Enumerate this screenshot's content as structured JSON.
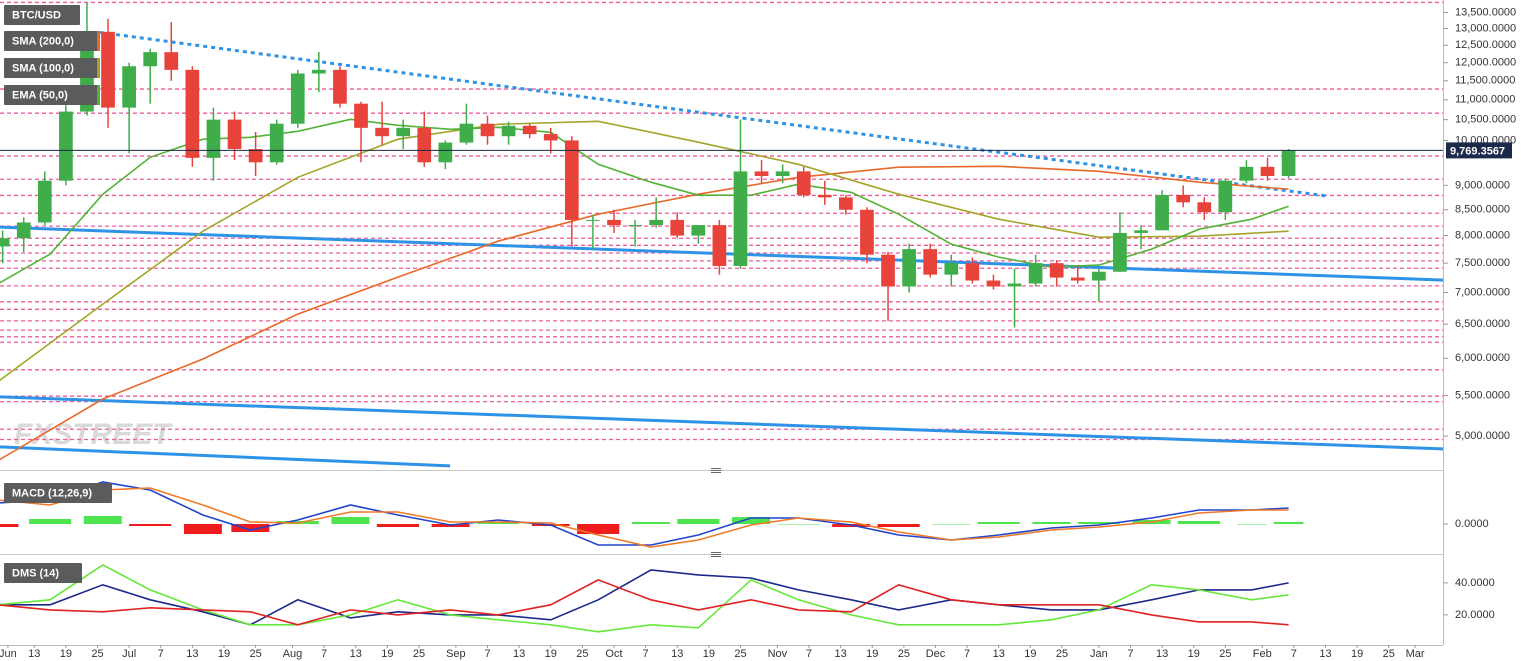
{
  "chart_data": [
    {
      "type": "candlestick",
      "title": "BTC/USD",
      "log_scale": true,
      "xlim": [
        5.5,
        279.3
      ],
      "ylim": [
        4650,
        13900
      ],
      "yticks": [
        {
          "value": 13500,
          "label": "13,500.0000"
        },
        {
          "value": 13000,
          "label": "13,000.0000"
        },
        {
          "value": 12500,
          "label": "12,500.0000"
        },
        {
          "value": 12000,
          "label": "12,000.0000"
        },
        {
          "value": 11500,
          "label": "11,500.0000"
        },
        {
          "value": 11000,
          "label": "11,000.0000"
        },
        {
          "value": 10500,
          "label": "10,500.0000"
        },
        {
          "value": 10000,
          "label": "10,000.0000"
        },
        {
          "value": 9000,
          "label": "9,000.0000"
        },
        {
          "value": 8500,
          "label": "8,500.0000"
        },
        {
          "value": 8000,
          "label": "8,000.0000"
        },
        {
          "value": 7500,
          "label": "7,500.0000"
        },
        {
          "value": 7000,
          "label": "7,000.0000"
        },
        {
          "value": 6500,
          "label": "6,500.0000"
        },
        {
          "value": 6000,
          "label": "6,000.0000"
        },
        {
          "value": 5500,
          "label": "5,500.0000"
        },
        {
          "value": 5000,
          "label": "5,000.0000"
        }
      ],
      "x": [
        6,
        10,
        14,
        18,
        22,
        26,
        30,
        34,
        38,
        42,
        46,
        50,
        54,
        58,
        62,
        66,
        70,
        74,
        78,
        82,
        86,
        90,
        94,
        98,
        102,
        106,
        110,
        114,
        118,
        122,
        126,
        130,
        134,
        138,
        142,
        146,
        150,
        154,
        158,
        162,
        166,
        170,
        174,
        178,
        182,
        186,
        190,
        194,
        198,
        202,
        206,
        210,
        214,
        218,
        222,
        226,
        230,
        234,
        238,
        242,
        246,
        250
      ],
      "open": [
        7800,
        7950,
        8250,
        9100,
        10700,
        12900,
        10800,
        11900,
        12300,
        11800,
        9600,
        10500,
        9800,
        9500,
        10400,
        11700,
        11800,
        10900,
        10300,
        10100,
        10300,
        9500,
        9950,
        10400,
        10100,
        10350,
        10150,
        10000,
        8300,
        8300,
        8200,
        8200,
        8300,
        8000,
        8200,
        7450,
        9300,
        9200,
        9300,
        8800,
        8750,
        8500,
        7650,
        7100,
        7750,
        7300,
        7500,
        7200,
        7100,
        7150,
        7500,
        7250,
        7200,
        7350,
        8050,
        8100,
        8800,
        8650,
        8450,
        9100,
        9400,
        9200
      ],
      "high": [
        8100,
        8350,
        9300,
        10900,
        13800,
        13300,
        12000,
        12400,
        13200,
        11900,
        10800,
        10700,
        10200,
        10500,
        11800,
        12300,
        11900,
        10950,
        10950,
        10500,
        10700,
        10000,
        10900,
        10600,
        10450,
        10400,
        10300,
        10100,
        8400,
        8500,
        8300,
        8750,
        8450,
        8200,
        8300,
        10500,
        9550,
        9450,
        9400,
        9100,
        8800,
        8550,
        7700,
        7850,
        7850,
        7650,
        7600,
        7300,
        7400,
        7650,
        7550,
        7450,
        7400,
        8450,
        8200,
        8900,
        9000,
        8750,
        9150,
        9550,
        9600,
        9800
      ],
      "low": [
        7500,
        7700,
        8200,
        9000,
        10600,
        10300,
        9700,
        10900,
        11500,
        9400,
        9100,
        9550,
        9200,
        9450,
        10300,
        11200,
        10800,
        9500,
        9900,
        9800,
        9400,
        9350,
        9900,
        9900,
        9900,
        10050,
        9700,
        7800,
        7750,
        8050,
        7800,
        8150,
        7950,
        7850,
        7300,
        7400,
        9050,
        9050,
        8750,
        8600,
        8400,
        7500,
        6550,
        7000,
        7250,
        7100,
        7150,
        7050,
        6450,
        7100,
        7100,
        7150,
        6850,
        7350,
        7750,
        8100,
        8550,
        8300,
        8300,
        9050,
        9100,
        9150
      ],
      "close": [
        7950,
        8250,
        9100,
        10700,
        12900,
        10800,
        11900,
        12300,
        11800,
        9600,
        10500,
        9800,
        9500,
        10400,
        11700,
        11800,
        10900,
        10300,
        10100,
        10300,
        9500,
        9950,
        10400,
        10100,
        10350,
        10150,
        10000,
        8300,
        8300,
        8200,
        8200,
        8300,
        8000,
        8200,
        7450,
        9300,
        9200,
        9300,
        8800,
        8750,
        8500,
        7650,
        7100,
        7750,
        7300,
        7500,
        7200,
        7100,
        7150,
        7500,
        7250,
        7200,
        7350,
        8050,
        8100,
        8800,
        8650,
        8450,
        9100,
        9400,
        9200,
        9769
      ],
      "up_color": "#3fae4a",
      "down_color": "#e8433a",
      "last_price": {
        "value": 9769.3567,
        "label": "9,769.3567"
      },
      "levels": [
        13820,
        11280,
        10660,
        9640,
        9130,
        8790,
        8430,
        8180,
        7950,
        7820,
        7680,
        7540,
        7410,
        7110,
        6850,
        6730,
        6550,
        6410,
        6310,
        6230,
        5840,
        5490,
        5420,
        5080,
        4960
      ],
      "level_color": "#ee5a9c",
      "trendlines": [
        {
          "color": "#2e93e6",
          "dash": true,
          "x": [
            24.5,
            257.5
          ],
          "values": [
            12882,
            8775
          ]
        },
        {
          "color": "#2e93e6",
          "dash": false,
          "x": [
            5.5,
            279.3
          ],
          "values": [
            8160,
            7208
          ]
        },
        {
          "color": "#2e93e6",
          "dash": false,
          "x": [
            5.5,
            279.3
          ],
          "values": [
            5481,
            4852
          ]
        },
        {
          "color": "#2e93e6",
          "dash": false,
          "x": [
            5.5,
            90.9
          ],
          "values": [
            4874,
            4662
          ]
        }
      ],
      "series": [
        {
          "name": "SMA (200,0)",
          "color": "#e8692a",
          "x": [
            5,
            25,
            44,
            62,
            81,
            100,
            119,
            138,
            157,
            176,
            195,
            214,
            233,
            250
          ],
          "values": [
            4717,
            5454,
            5990,
            6655,
            7258,
            7896,
            8412,
            8816,
            9173,
            9391,
            9412,
            9303,
            9067,
            8919
          ]
        },
        {
          "name": "SMA (100,0)",
          "color": "#a3a52a",
          "x": [
            5,
            25,
            44,
            62,
            81,
            100,
            119,
            138,
            157,
            176,
            195,
            214,
            233,
            250
          ],
          "values": [
            5675,
            6813,
            8084,
            9173,
            10028,
            10386,
            10458,
            9958,
            9457,
            8816,
            8313,
            7970,
            7989,
            8084
          ]
        },
        {
          "name": "EMA (50,0)",
          "color": "#52b335",
          "x": [
            5,
            15,
            25,
            34,
            44,
            53,
            62,
            72,
            81,
            91,
            100,
            110,
            119,
            129,
            138,
            148,
            157,
            167,
            176,
            186,
            195,
            205,
            214,
            224,
            233,
            243,
            250
          ],
          "values": [
            7140,
            7660,
            8816,
            9613,
            10028,
            10074,
            10217,
            10508,
            10361,
            10265,
            10313,
            10193,
            9457,
            9067,
            8794,
            8794,
            9025,
            8856,
            8412,
            7842,
            7606,
            7430,
            7466,
            7750,
            8122,
            8313,
            8571
          ]
        }
      ],
      "watermark": "FXSTREET"
    },
    {
      "type": "macd",
      "title": "MACD (12,26,9)",
      "xlim": [
        5.5,
        279.3
      ],
      "ylim": [
        -675,
        1150
      ],
      "yticks": [
        {
          "value": 0,
          "label": "0.0000"
        }
      ],
      "x": [
        5,
        15,
        25,
        34,
        44,
        53,
        62,
        72,
        81,
        91,
        100,
        110,
        119,
        129,
        138,
        148,
        157,
        167,
        176,
        186,
        195,
        205,
        214,
        224,
        233,
        243,
        250
      ],
      "series": [
        {
          "color": "#2244cc",
          "values": [
            525,
            600,
            1050,
            850,
            225,
            -150,
            100,
            475,
            225,
            -25,
            100,
            -25,
            -525,
            -525,
            -275,
            150,
            150,
            -25,
            -275,
            -400,
            -275,
            -100,
            -25,
            150,
            350,
            350,
            400
          ]
        },
        {
          "color": "#f07a28",
          "values": [
            600,
            475,
            850,
            900,
            475,
            50,
            25,
            300,
            300,
            50,
            50,
            25,
            -275,
            -575,
            -400,
            -25,
            150,
            50,
            -200,
            -400,
            -325,
            -150,
            -75,
            50,
            275,
            350,
            350
          ]
        }
      ],
      "histogram": {
        "values": [
          -75,
          125,
          200,
          -50,
          -250,
          -200,
          75,
          175,
          -75,
          -75,
          50,
          -50,
          -250,
          50,
          125,
          175,
          0,
          -75,
          -75,
          0,
          50,
          50,
          50,
          100,
          75,
          0,
          50
        ],
        "up_color": "#4ee44e",
        "down_color": "#ee1c1c"
      }
    },
    {
      "type": "line",
      "title": "DMS (14)",
      "xlim": [
        5.5,
        279.3
      ],
      "ylim": [
        3,
        55.6
      ],
      "yticks": [
        {
          "value": 40,
          "label": "40.0000"
        },
        {
          "value": 20,
          "label": "20.0000"
        }
      ],
      "x": [
        5,
        15,
        25,
        34,
        44,
        53,
        62,
        72,
        81,
        91,
        100,
        110,
        119,
        129,
        138,
        148,
        157,
        167,
        176,
        186,
        195,
        205,
        214,
        224,
        233,
        243,
        250
      ],
      "series": [
        {
          "color": "#1c2a8a",
          "values": [
            26.3,
            26.3,
            38.8,
            29.4,
            21.9,
            13.8,
            29.4,
            18.1,
            21.9,
            20,
            20,
            16.9,
            29.4,
            48.1,
            45,
            43.1,
            35.6,
            29.4,
            23.1,
            29.4,
            26.3,
            23.1,
            23.1,
            29.4,
            35.6,
            35.6,
            40
          ]
        },
        {
          "color": "#66e83a",
          "values": [
            26.3,
            29.4,
            51.3,
            35.6,
            23.1,
            13.8,
            13.8,
            20,
            29.4,
            20,
            16.9,
            13.8,
            9.4,
            13.8,
            11.9,
            41.9,
            29.4,
            20,
            13.8,
            13.8,
            13.8,
            16.9,
            23.1,
            38.8,
            35.6,
            29.4,
            32.5
          ]
        },
        {
          "color": "#e02222",
          "values": [
            26.3,
            23.1,
            21.9,
            24.4,
            23.1,
            21.9,
            13.8,
            23.1,
            20,
            23.1,
            20,
            26.3,
            41.9,
            29.4,
            23.1,
            29.4,
            23.1,
            21.9,
            38.8,
            29.4,
            26.3,
            26.3,
            26.3,
            20,
            15.6,
            15.6,
            13.8
          ]
        }
      ],
      "xticks": [
        {
          "value": 7,
          "label": "Jun"
        },
        {
          "value": 12,
          "label": "13"
        },
        {
          "value": 18,
          "label": "19"
        },
        {
          "value": 24,
          "label": "25"
        },
        {
          "value": 30,
          "label": "Jul"
        },
        {
          "value": 36,
          "label": "7"
        },
        {
          "value": 42,
          "label": "13"
        },
        {
          "value": 48,
          "label": "19"
        },
        {
          "value": 54,
          "label": "25"
        },
        {
          "value": 61,
          "label": "Aug"
        },
        {
          "value": 67,
          "label": "7"
        },
        {
          "value": 73,
          "label": "13"
        },
        {
          "value": 79,
          "label": "19"
        },
        {
          "value": 85,
          "label": "25"
        },
        {
          "value": 92,
          "label": "Sep"
        },
        {
          "value": 98,
          "label": "7"
        },
        {
          "value": 104,
          "label": "13"
        },
        {
          "value": 110,
          "label": "19"
        },
        {
          "value": 116,
          "label": "25"
        },
        {
          "value": 122,
          "label": "Oct"
        },
        {
          "value": 128,
          "label": "7"
        },
        {
          "value": 134,
          "label": "13"
        },
        {
          "value": 140,
          "label": "19"
        },
        {
          "value": 146,
          "label": "25"
        },
        {
          "value": 153,
          "label": "Nov"
        },
        {
          "value": 159,
          "label": "7"
        },
        {
          "value": 165,
          "label": "13"
        },
        {
          "value": 171,
          "label": "19"
        },
        {
          "value": 177,
          "label": "25"
        },
        {
          "value": 183,
          "label": "Dec"
        },
        {
          "value": 189,
          "label": "7"
        },
        {
          "value": 195,
          "label": "13"
        },
        {
          "value": 201,
          "label": "19"
        },
        {
          "value": 207,
          "label": "25"
        },
        {
          "value": 214,
          "label": "Jan"
        },
        {
          "value": 220,
          "label": "7"
        },
        {
          "value": 226,
          "label": "13"
        },
        {
          "value": 232,
          "label": "19"
        },
        {
          "value": 238,
          "label": "25"
        },
        {
          "value": 245,
          "label": "Feb"
        },
        {
          "value": 251,
          "label": "7"
        },
        {
          "value": 257,
          "label": "13"
        },
        {
          "value": 263,
          "label": "19"
        },
        {
          "value": 269,
          "label": "25"
        },
        {
          "value": 274,
          "label": "Mar"
        }
      ]
    }
  ]
}
